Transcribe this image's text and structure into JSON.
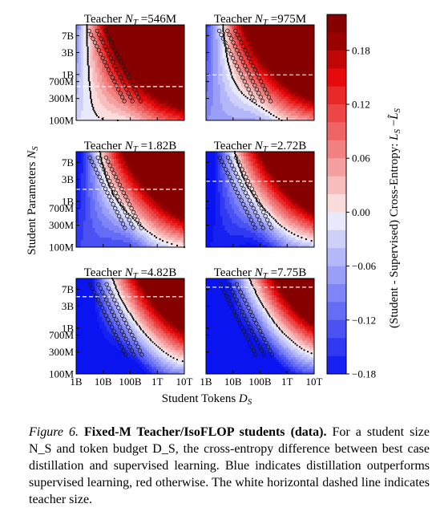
{
  "chart_data": {
    "type": "heatmap",
    "ylabel": "Student Parameters N_S",
    "xlabel": "Student Tokens D_S",
    "colorbar_label": "(Student - Supervised) Cross-Entropy: L_S − L̃_S",
    "x_scale": "log",
    "y_scale": "log",
    "x_ticks": [
      {
        "value": 1000000000.0,
        "label": "1B"
      },
      {
        "value": 10000000000.0,
        "label": "10B"
      },
      {
        "value": 100000000000.0,
        "label": "100B"
      },
      {
        "value": 1000000000000.0,
        "label": "1T"
      },
      {
        "value": 10000000000000.0,
        "label": "10T"
      }
    ],
    "y_ticks": [
      {
        "value": 100000000.0,
        "label": "100M"
      },
      {
        "value": 300000000.0,
        "label": "300M"
      },
      {
        "value": 700000000.0,
        "label": "700M"
      },
      {
        "value": 1000000000.0,
        "label": "1B"
      },
      {
        "value": 3000000000.0,
        "label": "3B"
      },
      {
        "value": 7000000000.0,
        "label": "7B"
      }
    ],
    "xlim": [
      1000000000.0,
      10000000000000.0
    ],
    "ylim": [
      100000000.0,
      12000000000.0
    ],
    "colorbar": {
      "min": -0.18,
      "max": 0.22,
      "ticks": [
        0.18,
        0.12,
        0.06,
        0.0,
        -0.06,
        -0.12,
        -0.18
      ],
      "tick_labels": [
        "0.18",
        "0.12",
        "0.06",
        "0.00",
        "−0.06",
        "−0.12",
        "−0.18"
      ],
      "colormap": "bwr",
      "low_color": "#0a14f0",
      "high_color": "#8b0000"
    },
    "panels": [
      {
        "teacher": "546M",
        "teacher_params": 546000000.0,
        "title_prefix": "Teacher ",
        "title_sym": "N",
        "title_sub": "T",
        "title_suffix": " =546M"
      },
      {
        "teacher": "975M",
        "teacher_params": 975000000.0,
        "title_prefix": "Teacher ",
        "title_sym": "N",
        "title_sub": "T",
        "title_suffix": " =975M"
      },
      {
        "teacher": "1.82B",
        "teacher_params": 1820000000.0,
        "title_prefix": "Teacher ",
        "title_sym": "N",
        "title_sub": "T",
        "title_suffix": " =1.82B"
      },
      {
        "teacher": "2.72B",
        "teacher_params": 2720000000.0,
        "title_prefix": "Teacher ",
        "title_sym": "N",
        "title_sub": "T",
        "title_suffix": " =2.72B"
      },
      {
        "teacher": "4.82B",
        "teacher_params": 4820000000.0,
        "title_prefix": "Teacher ",
        "title_sym": "N",
        "title_sub": "T",
        "title_suffix": " =4.82B"
      },
      {
        "teacher": "7.75B",
        "teacher_params": 7750000000.0,
        "title_prefix": "Teacher ",
        "title_sym": "N",
        "title_sub": "T",
        "title_suffix": " =7.75B"
      }
    ],
    "isoflop_student_budgets_tokens_start": [
      3000000000.0,
      6000000000.0,
      12000000000.0
    ],
    "annotations": [
      "white horizontal dashed line = teacher size",
      "black contour = zero difference",
      "circles = IsoFLOP student runs"
    ]
  },
  "caption": {
    "label": "Figure 6.",
    "title": "Fixed-M Teacher/IsoFLOP students (data).",
    "body": "For a student size N_S and token budget D_S, the cross-entropy difference between best case distillation and supervised learning. Blue indicates distillation outperforms supervised learning, red otherwise. The white horizontal dashed line indicates teacher size."
  }
}
